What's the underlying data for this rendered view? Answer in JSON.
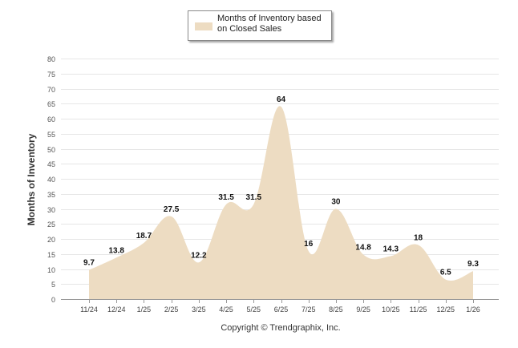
{
  "colors": {
    "fill": "#eddcc2",
    "grid": "#e6e6e6",
    "axis": "#999999"
  },
  "legend": {
    "label": "Months of Inventory based on Closed Sales"
  },
  "footer": {
    "copyright": "Copyright © Trendgraphix, Inc."
  },
  "chart_data": {
    "type": "area",
    "title": "",
    "xlabel": "",
    "ylabel": "Months of Inventory",
    "ylim": [
      0,
      80
    ],
    "yticks": [
      0,
      5,
      10,
      15,
      20,
      25,
      30,
      35,
      40,
      45,
      50,
      55,
      60,
      65,
      70,
      75,
      80
    ],
    "categories": [
      "11/24",
      "12/24",
      "1/25",
      "2/25",
      "3/25",
      "4/25",
      "5/25",
      "6/25",
      "7/25",
      "8/25",
      "9/25",
      "10/25",
      "11/25",
      "12/25",
      "1/26"
    ],
    "series": [
      {
        "name": "Months of Inventory based on Closed Sales",
        "values": [
          9.7,
          13.8,
          18.7,
          27.5,
          12.2,
          31.5,
          31.5,
          64,
          16,
          30,
          14.8,
          14.3,
          18,
          6.5,
          9.3
        ],
        "labels": [
          "9.7",
          "13.8",
          "18.7",
          "27.5",
          "12.2",
          "31.5",
          "31.5",
          "64",
          "16",
          "30",
          "14.8",
          "14.3",
          "18",
          "6.5",
          "9.3"
        ]
      }
    ],
    "grid": true,
    "legend_position": "top-center"
  }
}
